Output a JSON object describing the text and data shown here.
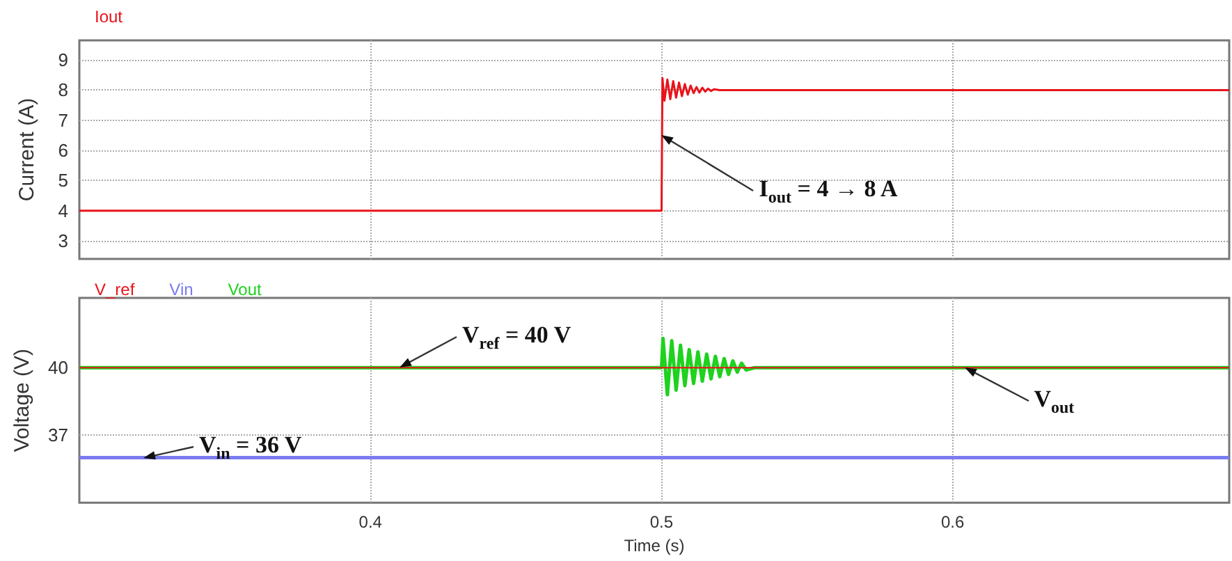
{
  "chart_data": [
    {
      "type": "line",
      "ylabel": "Current (A)",
      "xlim": [
        0.3,
        0.695
      ],
      "xticks": [
        0.4,
        0.5,
        0.6
      ],
      "ylim": [
        2.4,
        9.65
      ],
      "yticks": [
        3,
        4,
        5,
        6,
        7,
        8,
        9
      ],
      "grid": true,
      "legend": "top left",
      "tick_labels": "y",
      "marker": "none",
      "line_style": "solid",
      "annotations": [
        {
          "text": "I$_{out}$ = 4 → 8 A",
          "x": 0.5,
          "y": 6.5
        }
      ],
      "series": [
        {
          "name": "Iout",
          "color": "#e8141b",
          "x": [
            0.3,
            0.5,
            0.5003,
            0.501,
            0.502,
            0.503,
            0.504,
            0.505,
            0.506,
            0.507,
            0.508,
            0.509,
            0.51,
            0.511,
            0.512,
            0.513,
            0.514,
            0.515,
            0.516,
            0.517,
            0.518,
            0.52,
            0.695
          ],
          "values": [
            4,
            4,
            8.4,
            7.65,
            8.35,
            7.7,
            8.3,
            7.75,
            8.25,
            7.8,
            8.2,
            7.85,
            8.15,
            7.9,
            8.1,
            7.92,
            8.08,
            7.95,
            8.05,
            7.97,
            8.03,
            8,
            8
          ]
        }
      ]
    },
    {
      "type": "line",
      "xlabel": "Time (s)",
      "ylabel": "Voltage (V)",
      "xlim": [
        0.3,
        0.695
      ],
      "xticks": [
        0.4,
        0.5,
        0.6
      ],
      "ylim": [
        34,
        43.1
      ],
      "yticks": [
        37,
        40
      ],
      "grid": true,
      "legend": "top left",
      "marker": "none",
      "line_style": "solid",
      "annotations": [
        {
          "text": "V$_{ref}$ = 40 V",
          "x": 0.41,
          "y": 40
        },
        {
          "text": "V$_{in}$ = 36 V",
          "x": 0.322,
          "y": 36
        },
        {
          "text": "V$_{out}$",
          "x": 0.604,
          "y": 40
        }
      ],
      "series": [
        {
          "name": "V_ref",
          "color": "#e8141b",
          "x": [
            0.3,
            0.695
          ],
          "values": [
            40,
            40
          ]
        },
        {
          "name": "Vin",
          "color": "#7b7bf0",
          "x": [
            0.3,
            0.695
          ],
          "values": [
            36,
            36
          ]
        },
        {
          "name": "Vout",
          "color": "#1ed21e",
          "x": [
            0.3,
            0.5,
            0.5005,
            0.502,
            0.5035,
            0.505,
            0.5065,
            0.508,
            0.5095,
            0.511,
            0.5125,
            0.514,
            0.5155,
            0.517,
            0.5185,
            0.52,
            0.5215,
            0.523,
            0.5245,
            0.526,
            0.5275,
            0.529,
            0.532,
            0.695
          ],
          "values": [
            40,
            40,
            41.3,
            38.8,
            41.2,
            39,
            41,
            39.2,
            40.8,
            39.3,
            40.7,
            39.4,
            40.6,
            39.5,
            40.5,
            39.6,
            40.4,
            39.7,
            40.3,
            39.8,
            40.2,
            39.9,
            40,
            40
          ]
        }
      ]
    }
  ]
}
